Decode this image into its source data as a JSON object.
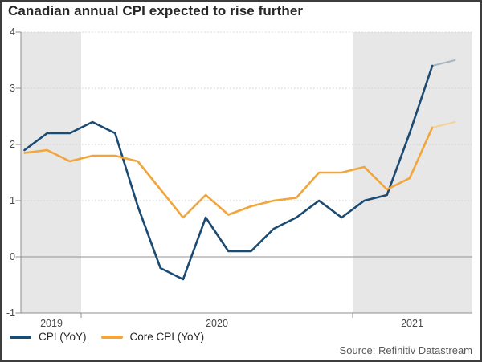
{
  "title": "Canadian annual CPI expected to rise further",
  "source": "Source: Refinitiv Datastream",
  "legend": {
    "items": [
      {
        "label": "CPI (YoY)",
        "color": "#1b4a73"
      },
      {
        "label": "Core CPI (YoY)",
        "color": "#f1a53a"
      }
    ]
  },
  "colors": {
    "cpi_line": "#1b4a73",
    "core_cpi_line": "#f1a53a",
    "cpi_forecast_line": "#a8b4be",
    "core_cpi_forecast_line": "#f5d199",
    "shaded_band": "#e7e7e7",
    "zero_line": "#909090",
    "gridline": "#cccccc",
    "frame_border": "#3d3d3d"
  },
  "chart_data": {
    "type": "line",
    "title": "Canadian annual CPI expected to rise further",
    "x_tick_labels": [
      "2019",
      "2020",
      "2021"
    ],
    "y_ticks": [
      4,
      3,
      2,
      1,
      0,
      -1
    ],
    "ylim": [
      -1,
      4
    ],
    "grid": "dotted horizontal at integers, solid line at 0",
    "legend_position": "bottom-left",
    "shaded_year_bands": [
      "2019 (partial, Oct-Dec)",
      "2021 (Jan onward)"
    ],
    "x_months": [
      "Oct 2019",
      "Nov 2019",
      "Dec 2019",
      "Jan 2020",
      "Feb 2020",
      "Mar 2020",
      "Apr 2020",
      "May 2020",
      "Jun 2020",
      "Jul 2020",
      "Aug 2020",
      "Sep 2020",
      "Oct 2020",
      "Nov 2020",
      "Dec 2020",
      "Jan 2021",
      "Feb 2021",
      "Mar 2021",
      "Apr 2021",
      "May 2021"
    ],
    "forecast_from_index": 18,
    "series": [
      {
        "name": "CPI (YoY)",
        "color": "#1b4a73",
        "forecast_color": "#a8b4be",
        "values": [
          1.9,
          2.2,
          2.2,
          2.4,
          2.2,
          0.9,
          -0.2,
          -0.4,
          0.7,
          0.1,
          0.1,
          0.5,
          0.7,
          1.0,
          0.7,
          1.0,
          1.1,
          2.2,
          3.4,
          3.5
        ]
      },
      {
        "name": "Core CPI (YoY)",
        "color": "#f1a53a",
        "forecast_color": "#f5d199",
        "values": [
          1.85,
          1.9,
          1.7,
          1.8,
          1.8,
          1.7,
          1.2,
          0.7,
          1.1,
          0.75,
          0.9,
          1.0,
          1.05,
          1.5,
          1.5,
          1.6,
          1.2,
          1.4,
          2.3,
          2.4
        ]
      }
    ]
  }
}
